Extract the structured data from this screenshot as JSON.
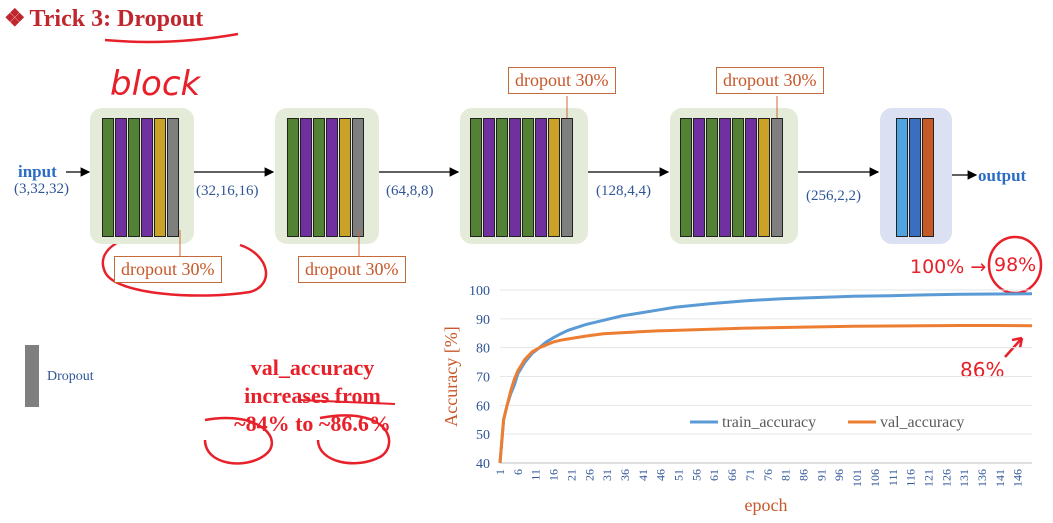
{
  "title": {
    "text": "Trick 3: Dropout",
    "bullet": "❖"
  },
  "handwritten": {
    "block": "block",
    "pct_100": "100%",
    "arrow": "→",
    "pct_98": "98%",
    "val_86": "86%"
  },
  "io": {
    "input": "input",
    "input_shape": "(3,32,32)",
    "output": "output"
  },
  "shapes": [
    "(32,16,16)",
    "(64,8,8)",
    "(128,4,4)",
    "(256,2,2)"
  ],
  "dropout_labels": [
    "dropout 30%",
    "dropout 30%",
    "dropout 30%",
    "dropout 30%"
  ],
  "legend": {
    "label": "Dropout",
    "color": "#7f7f7f"
  },
  "layer_colors": {
    "green": "#548235",
    "purple": "#7030a0",
    "gold": "#c9a227",
    "gray": "#7f7f7f",
    "light_blue": "#4fa3e0",
    "mid_blue": "#3a6fbf",
    "orange": "#c55a28"
  },
  "annotation": {
    "line1": "val_accuracy",
    "line2": "increases from",
    "line3": "~84% to ~86.6%"
  },
  "chart_data": {
    "type": "line",
    "xlabel": "epoch",
    "ylabel": "Accuracy [%]",
    "ylim": [
      40,
      100
    ],
    "yticks": [
      40,
      50,
      60,
      70,
      80,
      90,
      100
    ],
    "xticks": [
      1,
      6,
      11,
      16,
      21,
      26,
      31,
      36,
      41,
      46,
      51,
      56,
      61,
      66,
      71,
      76,
      81,
      86,
      91,
      96,
      101,
      106,
      111,
      116,
      121,
      126,
      131,
      136,
      141,
      146
    ],
    "xlim": [
      1,
      150
    ],
    "legend_position": "bottom-right",
    "series": [
      {
        "name": "train_accuracy",
        "color": "#5b9bd5",
        "x": [
          1,
          2,
          3,
          4,
          5,
          6,
          8,
          10,
          12,
          14,
          16,
          18,
          20,
          25,
          30,
          35,
          40,
          45,
          50,
          60,
          70,
          80,
          90,
          100,
          110,
          120,
          130,
          140,
          150
        ],
        "y": [
          40,
          55,
          60,
          64,
          67,
          71,
          75,
          78,
          80,
          82,
          83.5,
          84.8,
          86,
          88,
          89.5,
          91,
          92,
          93,
          94,
          95.3,
          96.3,
          97,
          97.4,
          97.8,
          98,
          98.3,
          98.5,
          98.6,
          98.7
        ]
      },
      {
        "name": "val_accuracy",
        "color": "#ed7d31",
        "x": [
          1,
          2,
          3,
          4,
          5,
          6,
          8,
          10,
          12,
          14,
          16,
          18,
          20,
          25,
          30,
          35,
          40,
          45,
          50,
          60,
          70,
          80,
          90,
          100,
          110,
          120,
          130,
          140,
          150
        ],
        "y": [
          40,
          55,
          60,
          65,
          69,
          72,
          76,
          78.5,
          80,
          81,
          82,
          82.6,
          83,
          84,
          84.8,
          85.2,
          85.5,
          85.8,
          86,
          86.4,
          86.8,
          87,
          87.2,
          87.4,
          87.5,
          87.6,
          87.7,
          87.7,
          87.6
        ]
      }
    ]
  }
}
